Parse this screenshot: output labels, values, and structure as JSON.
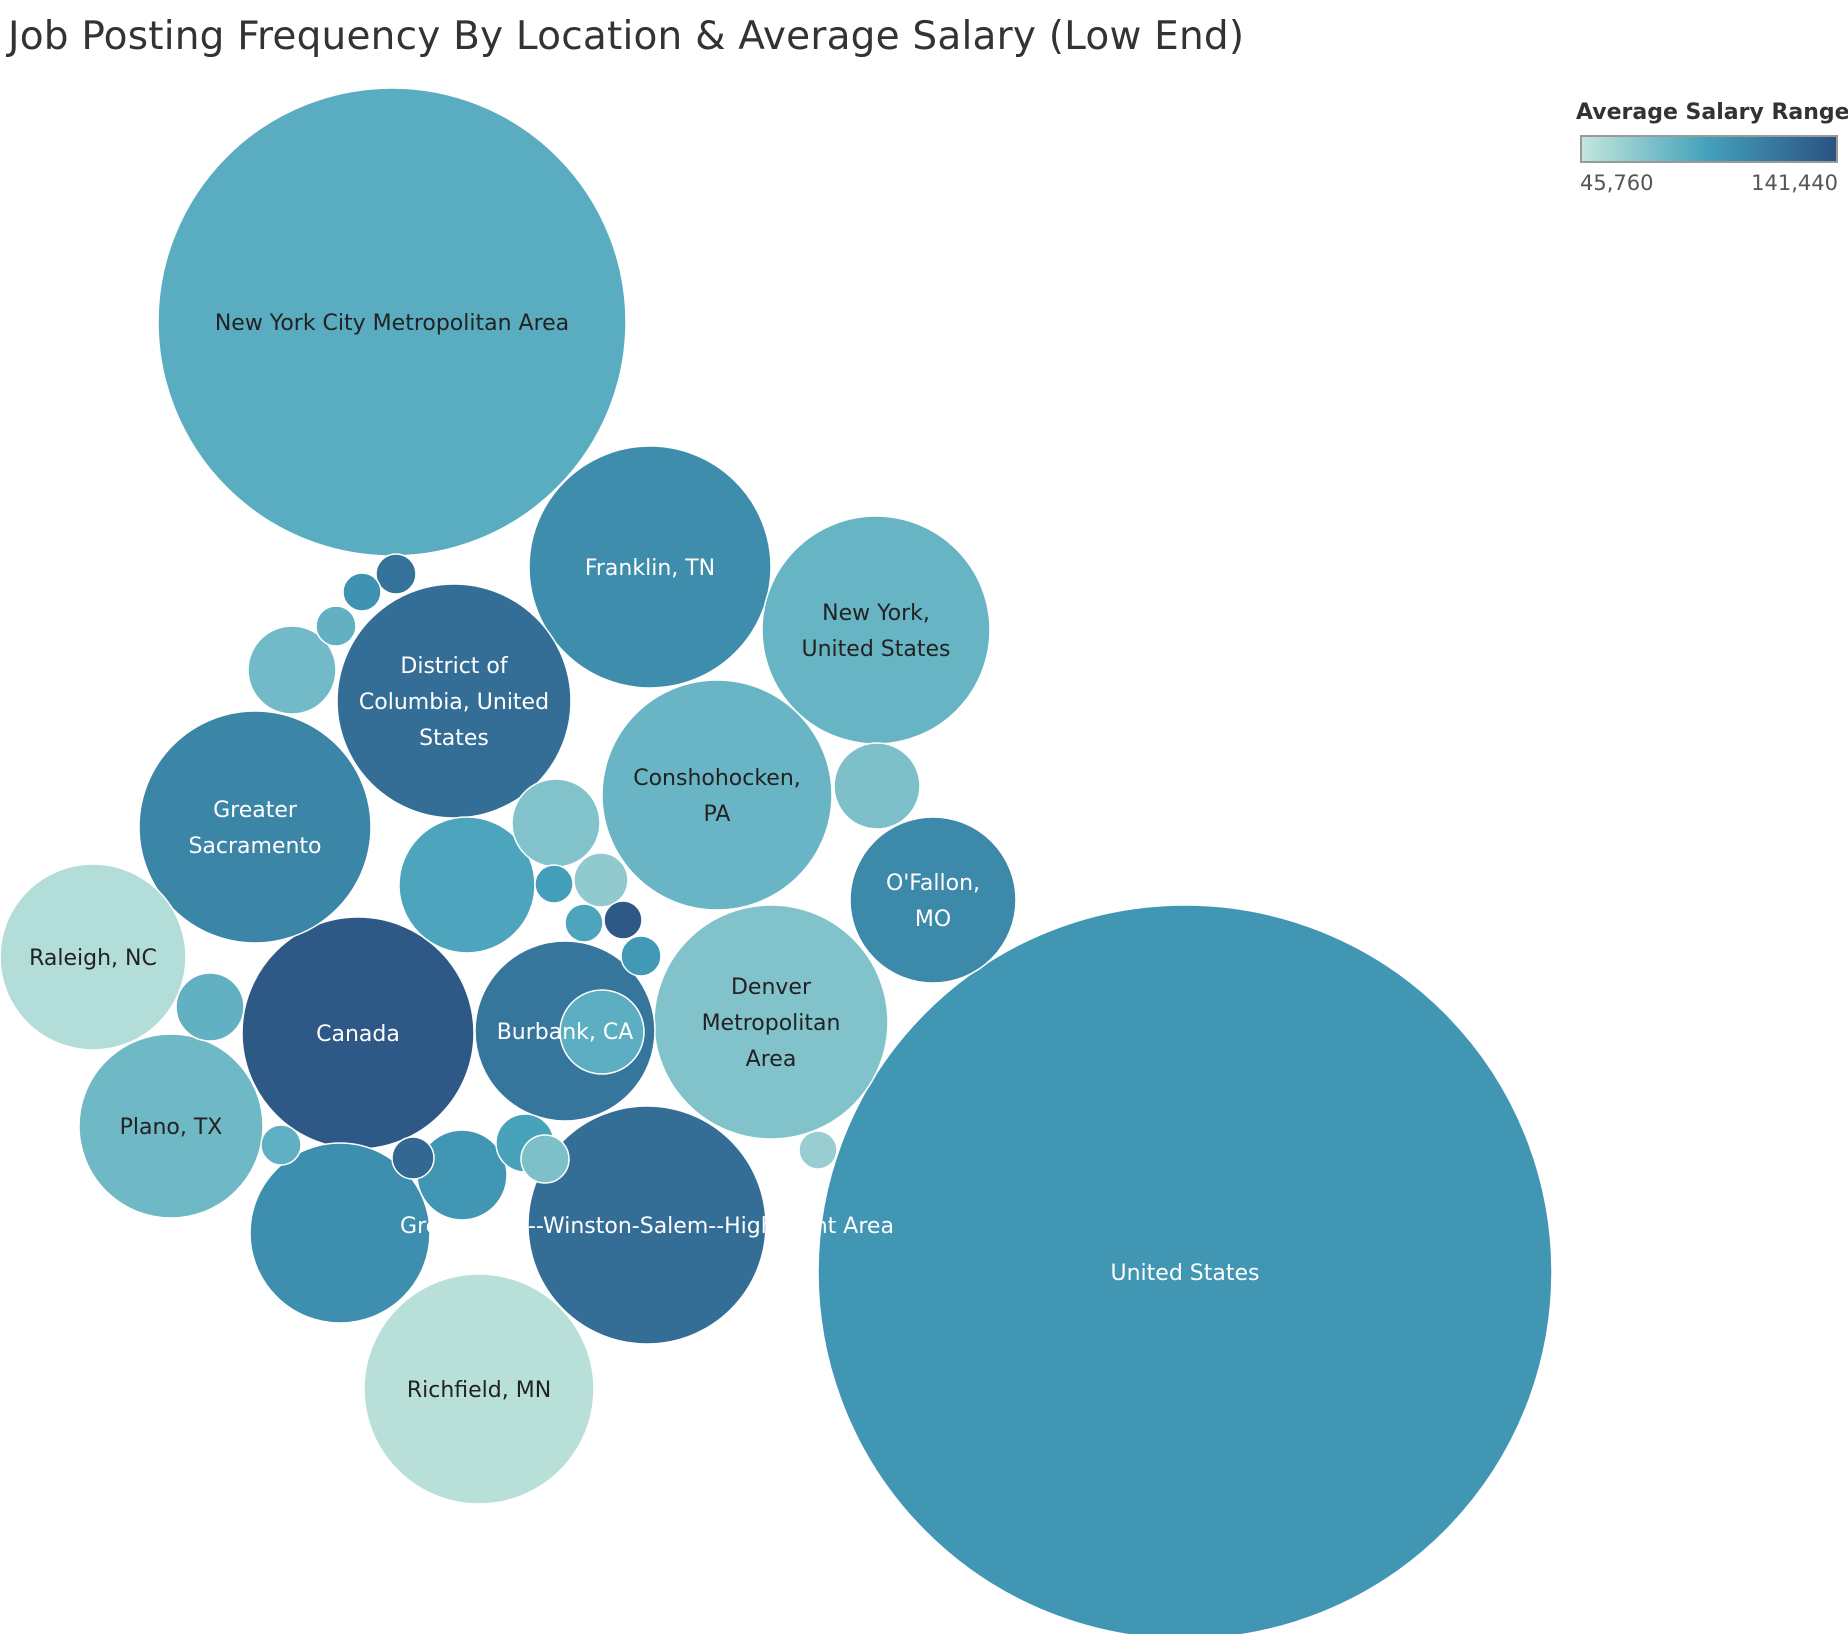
{
  "chart_data": {
    "type": "bubble",
    "title": "Job Posting Frequency By Location & Average Salary (Low End)",
    "legend": {
      "title": "Average Salary Range",
      "min_label": "45,760",
      "max_label": "141,440",
      "min_value": 45760,
      "max_value": 141440,
      "color_min": "#c3e6dc",
      "color_mid": "#43a0bb",
      "color_max": "#2c5282",
      "placement": "top-right"
    },
    "bubbles": [
      {
        "label": "United States",
        "lines": [
          "United States"
        ],
        "salary": 100000
      },
      {
        "label": "New York City Metropolitan Area",
        "lines": [
          "New York City Metropolitan Area"
        ],
        "salary": 85000
      },
      {
        "label": "Franklin, TN",
        "lines": [
          "Franklin, TN"
        ],
        "salary": 105000
      },
      {
        "label": "Greensboro--Winston-Salem--High Point Area",
        "lines": [
          "Greensboro--Winston-Salem--High Point Area"
        ],
        "salary": 125000
      },
      {
        "label": "New York, United States",
        "lines": [
          "New York,",
          "United States"
        ],
        "salary": 80000
      },
      {
        "label": "Conshohocken, PA",
        "lines": [
          "Conshohocken,",
          "PA"
        ],
        "salary": 79000
      },
      {
        "label": "Denver Metropolitan Area",
        "lines": [
          "Denver",
          "Metropolitan",
          "Area"
        ],
        "salary": 70000
      },
      {
        "label": "Canada",
        "lines": [
          "Canada"
        ],
        "salary": 138000
      },
      {
        "label": "District of Columbia, United States",
        "lines": [
          "District of",
          "Columbia, United",
          "States"
        ],
        "salary": 124000
      },
      {
        "label": "Greater Sacramento",
        "lines": [
          "Greater",
          "Sacramento"
        ],
        "salary": 110000
      },
      {
        "label": "Richfield, MN",
        "lines": [
          "Richfield, MN"
        ],
        "salary": 50000
      },
      {
        "label": "Raleigh, NC",
        "lines": [
          "Raleigh, NC"
        ],
        "salary": 52000
      },
      {
        "label": "Plano, TX",
        "lines": [
          "Plano, TX"
        ],
        "salary": 77000
      },
      {
        "label": "Burbank, CA",
        "lines": [
          "Burbank, CA"
        ],
        "salary": 120000
      },
      {
        "label": "O'Fallon, MO",
        "lines": [
          "O'Fallon,",
          "MO"
        ],
        "salary": 108000
      },
      {
        "label": "",
        "lines": [],
        "salary": 90000
      },
      {
        "label": "",
        "lines": [],
        "salary": 104000
      },
      {
        "label": "",
        "lines": [],
        "salary": 70000
      },
      {
        "label": "",
        "lines": [],
        "salary": 72000
      },
      {
        "label": "",
        "lines": [],
        "salary": 65000
      },
      {
        "label": "",
        "lines": [],
        "salary": 76000
      },
      {
        "label": "",
        "lines": [],
        "salary": 100000
      },
      {
        "label": "",
        "lines": [],
        "salary": 82000
      },
      {
        "label": "",
        "lines": [],
        "salary": 92000
      },
      {
        "label": "",
        "lines": [],
        "salary": 84000
      },
      {
        "label": "",
        "lines": [],
        "salary": 95000
      },
      {
        "label": "",
        "lines": [],
        "salary": 102000
      },
      {
        "label": "",
        "lines": [],
        "salary": 82000
      },
      {
        "label": "",
        "lines": [],
        "salary": 122000
      },
      {
        "label": "",
        "lines": [],
        "salary": 90000
      },
      {
        "label": "",
        "lines": [],
        "salary": 83000
      },
      {
        "label": "",
        "lines": [],
        "salary": 72000
      },
      {
        "label": "",
        "lines": [],
        "salary": 128000
      },
      {
        "label": "",
        "lines": [],
        "salary": 62000
      },
      {
        "label": "",
        "lines": [],
        "salary": 138000
      },
      {
        "label": "",
        "lines": [],
        "salary": 98000
      }
    ]
  }
}
